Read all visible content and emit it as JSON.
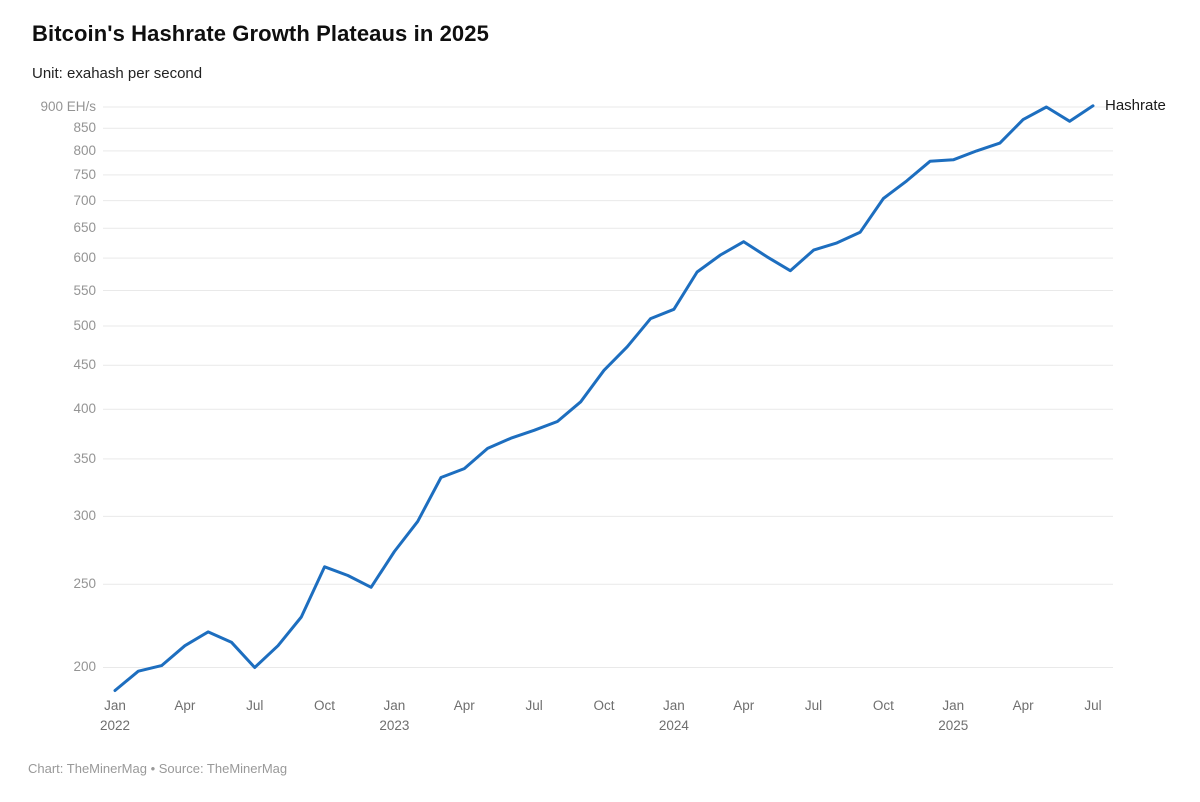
{
  "header": {
    "title": "Bitcoin's Hashrate Growth Plateaus in 2025",
    "subtitle": "Unit: exahash per second"
  },
  "footer": {
    "attribution": "Chart: TheMinerMag • Source: TheMinerMag"
  },
  "chart_data": {
    "type": "line",
    "title": "Bitcoin's Hashrate Growth Plateaus in 2025",
    "unit": "exahash per second",
    "y_scale": "log",
    "grid": "horizontal-only",
    "legend_position": "end-of-line",
    "colors": {
      "line": "#1d6ebf",
      "grid": "#e9e9e9"
    },
    "x": [
      "2022-01",
      "2022-02",
      "2022-03",
      "2022-04",
      "2022-05",
      "2022-06",
      "2022-07",
      "2022-08",
      "2022-09",
      "2022-10",
      "2022-11",
      "2022-12",
      "2023-01",
      "2023-02",
      "2023-03",
      "2023-04",
      "2023-05",
      "2023-06",
      "2023-07",
      "2023-08",
      "2023-09",
      "2023-10",
      "2023-11",
      "2023-12",
      "2024-01",
      "2024-02",
      "2024-03",
      "2024-04",
      "2024-05",
      "2024-06",
      "2024-07",
      "2024-08",
      "2024-09",
      "2024-10",
      "2024-11",
      "2024-12",
      "2025-01",
      "2025-02",
      "2025-03",
      "2025-04",
      "2025-05",
      "2025-06",
      "2025-07"
    ],
    "series": [
      {
        "name": "Hashrate",
        "color": "#1d6ebf",
        "values": [
          188,
          198,
          201,
          212,
          220,
          214,
          200,
          212,
          229,
          262,
          256,
          248,
          273,
          296,
          333,
          341,
          360,
          370,
          378,
          387,
          408,
          444,
          473,
          510,
          523,
          578,
          605,
          627,
          602,
          580,
          613,
          625,
          643,
          704,
          738,
          778,
          781,
          800,
          817,
          870,
          900,
          866,
          903
        ]
      }
    ],
    "y_axis": {
      "tick_values": [
        900,
        850,
        800,
        750,
        700,
        650,
        600,
        550,
        500,
        450,
        400,
        350,
        300,
        250,
        200
      ],
      "tick_labels": [
        "900 EH/s",
        "850",
        "800",
        "750",
        "700",
        "650",
        "600",
        "550",
        "500",
        "450",
        "400",
        "350",
        "300",
        "250",
        "200"
      ]
    },
    "x_axis": {
      "ticks": [
        {
          "index": 0,
          "label": "Jan",
          "year": "2022"
        },
        {
          "index": 3,
          "label": "Apr"
        },
        {
          "index": 6,
          "label": "Jul"
        },
        {
          "index": 9,
          "label": "Oct"
        },
        {
          "index": 12,
          "label": "Jan",
          "year": "2023"
        },
        {
          "index": 15,
          "label": "Apr"
        },
        {
          "index": 18,
          "label": "Jul"
        },
        {
          "index": 21,
          "label": "Oct"
        },
        {
          "index": 24,
          "label": "Jan",
          "year": "2024"
        },
        {
          "index": 27,
          "label": "Apr"
        },
        {
          "index": 30,
          "label": "Jul"
        },
        {
          "index": 33,
          "label": "Oct"
        },
        {
          "index": 36,
          "label": "Jan",
          "year": "2025"
        },
        {
          "index": 39,
          "label": "Apr"
        },
        {
          "index": 42,
          "label": "Jul"
        }
      ]
    }
  }
}
